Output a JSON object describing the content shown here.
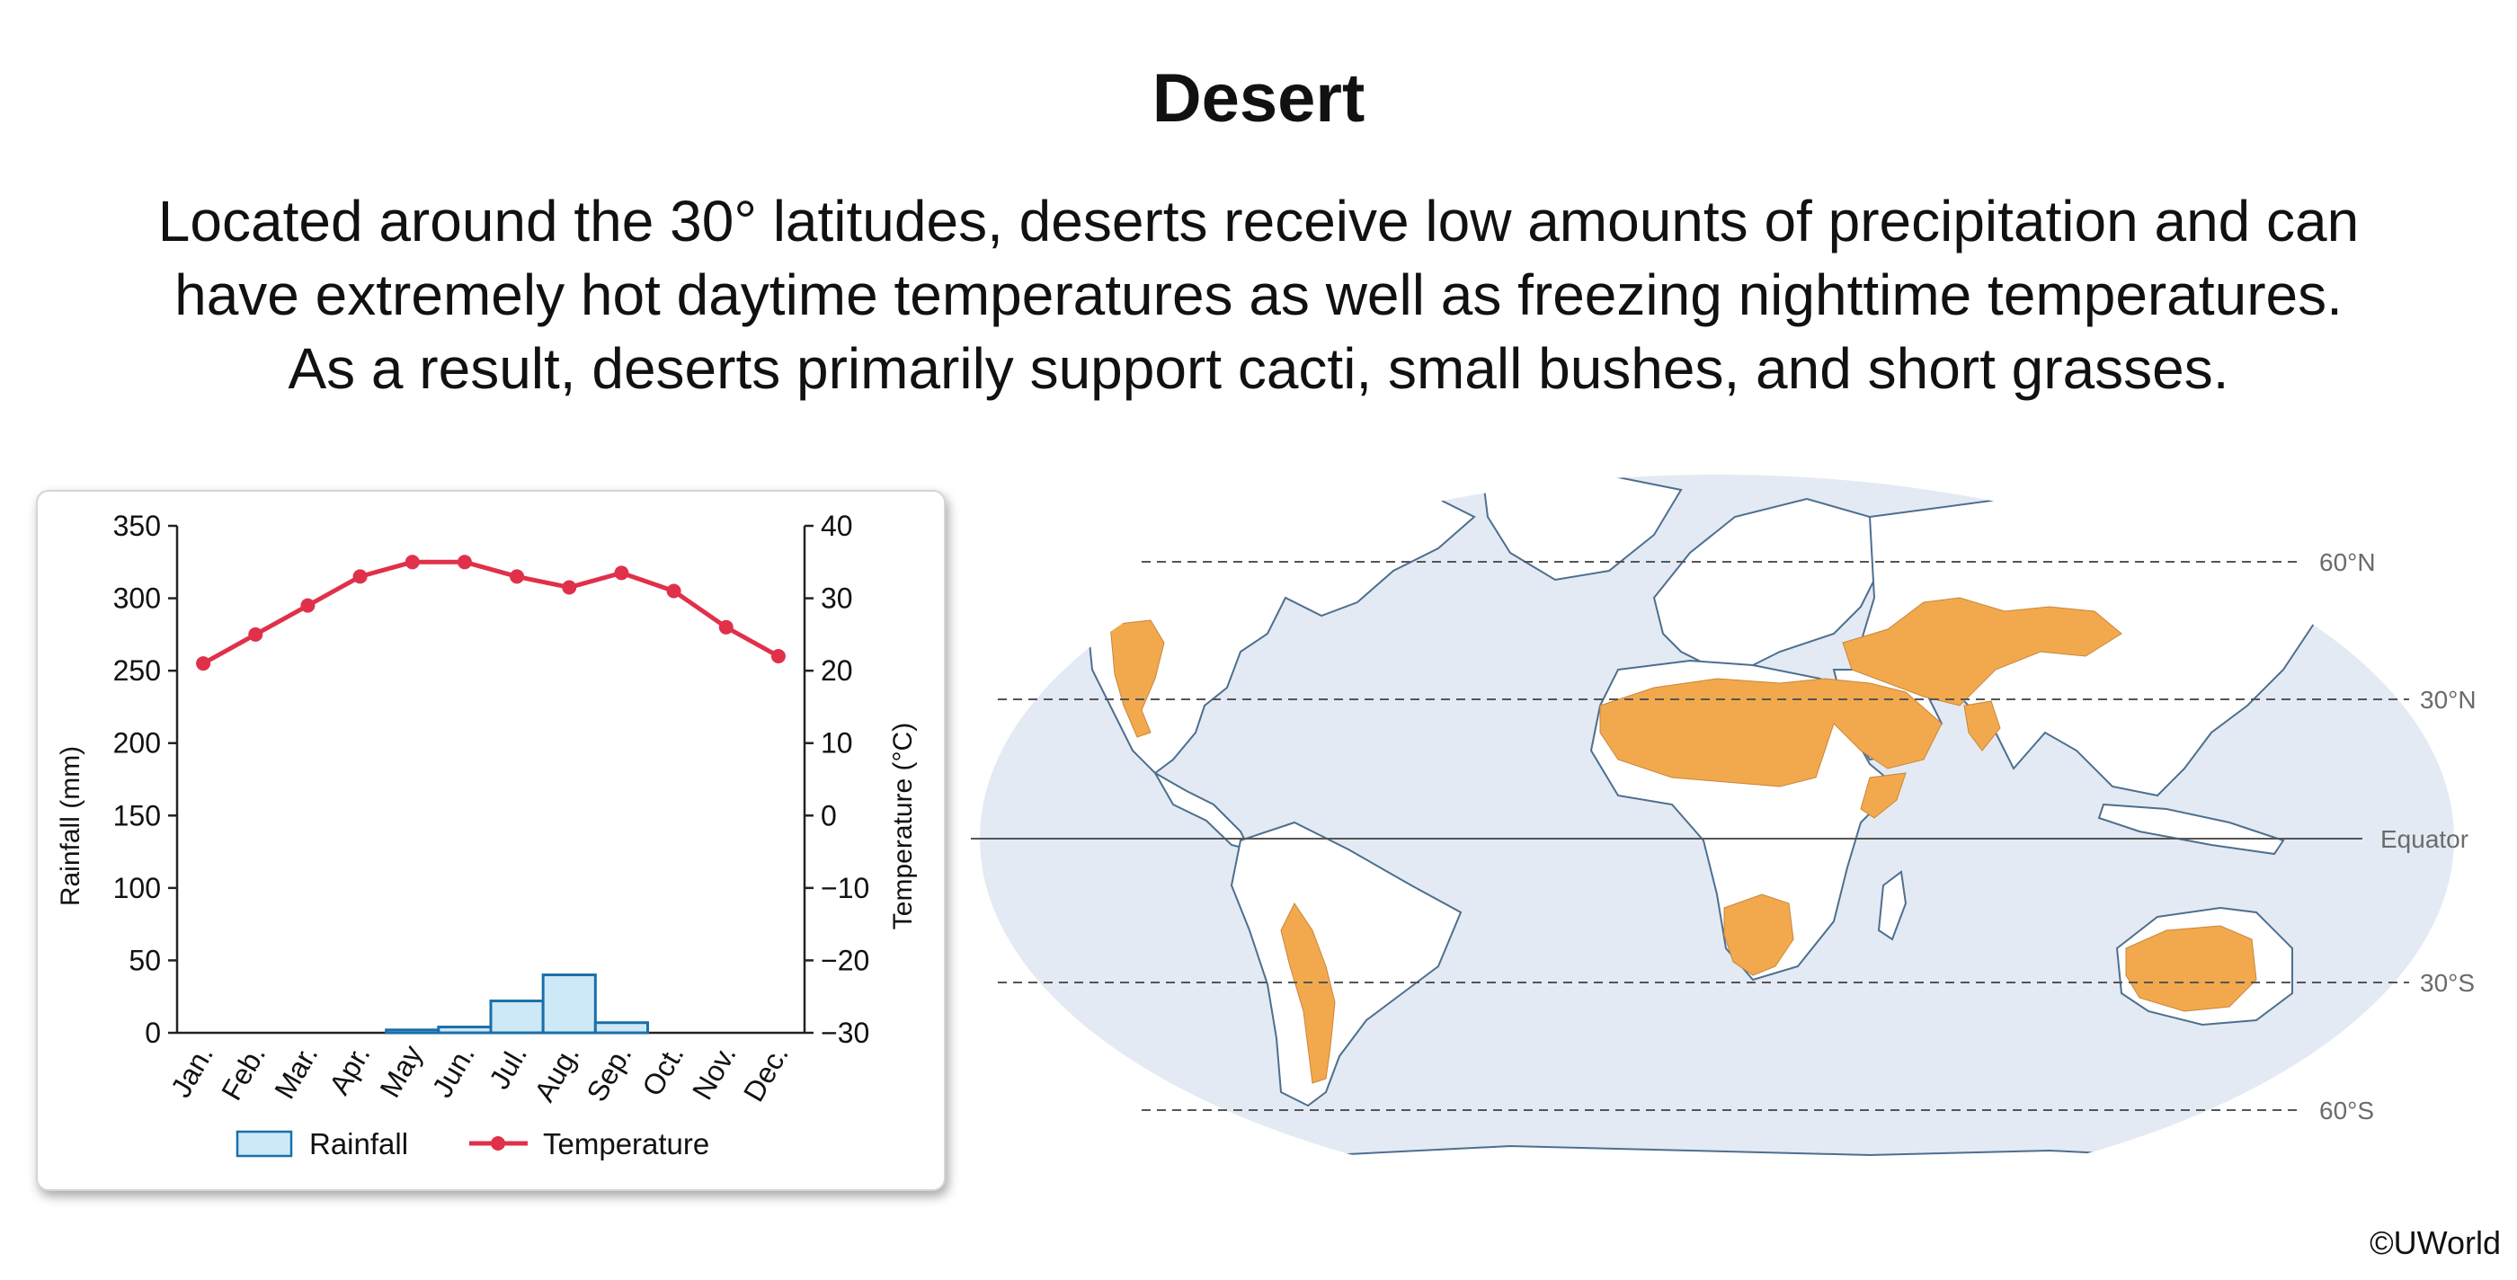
{
  "title": "Desert",
  "description_lines": [
    "Located around the 30° latitudes, deserts receive low amounts of precipitation and can",
    "have extremely hot daytime temperatures as well as freezing nighttime temperatures.",
    "As a result, deserts primarily support cacti, small bushes, and short grasses."
  ],
  "chart_data": {
    "type": "bar",
    "categories": [
      "Jan.",
      "Feb.",
      "Mar.",
      "Apr.",
      "May",
      "Jun.",
      "Jul.",
      "Aug.",
      "Sep.",
      "Oct.",
      "Nov.",
      "Dec."
    ],
    "series": [
      {
        "name": "Rainfall",
        "type": "bar",
        "axis": "left",
        "color": "#cde9f8",
        "edge_color": "#1b6fa8",
        "values": [
          0,
          0,
          0,
          0,
          2,
          4,
          22,
          40,
          7,
          0,
          0,
          0
        ]
      },
      {
        "name": "Temperature",
        "type": "line",
        "axis": "right",
        "color": "#e0304a",
        "values": [
          21,
          25,
          29,
          33,
          35,
          35,
          33,
          31.5,
          33.5,
          31,
          26,
          22
        ]
      }
    ],
    "ylabel": "Rainfall (mm)",
    "ylim": [
      0,
      350
    ],
    "yticks": [
      0,
      50,
      100,
      150,
      200,
      250,
      300,
      350
    ],
    "y2label": "Temperature (°C)",
    "y2lim": [
      -30,
      40
    ],
    "y2ticks": [
      -30,
      -20,
      -10,
      0,
      10,
      20,
      30,
      40
    ],
    "y2tick_labels": [
      "−30",
      "−20",
      "−10",
      "0",
      "10",
      "20",
      "30",
      "40"
    ],
    "grid": false,
    "legend": "bottom"
  },
  "map": {
    "latitude_labels": [
      "60°N",
      "30°N",
      "Equator",
      "30°S",
      "60°S"
    ],
    "colors": {
      "ocean": "#e3eaf3",
      "land": "#ffffff",
      "desert": "#f2a94d",
      "border": "#9aa5b1",
      "coast": "#4d6f8f"
    }
  },
  "copyright": "©UWorld"
}
